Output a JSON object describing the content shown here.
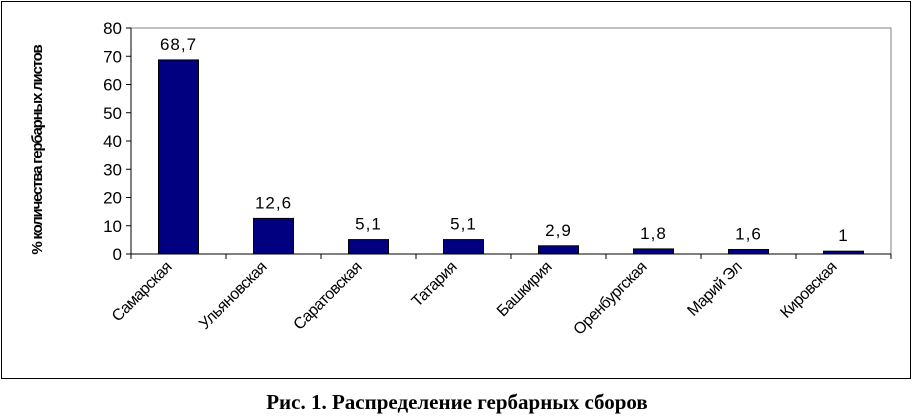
{
  "chart_data": {
    "type": "bar",
    "title": "",
    "xlabel": "",
    "ylabel": "% количества гербарных листов",
    "categories": [
      "Самарская",
      "Ульяновская",
      "Саратовская",
      "Татария",
      "Башкирия",
      "Оренбургская",
      "Марий Эл",
      "Кировская"
    ],
    "values": [
      68.7,
      12.6,
      5.1,
      5.1,
      2.9,
      1.8,
      1.6,
      1
    ],
    "data_labels": [
      "68,7",
      "12,6",
      "5,1",
      "5,1",
      "2,9",
      "1,8",
      "1,6",
      "1"
    ],
    "yticks": [
      0,
      10,
      20,
      30,
      40,
      50,
      60,
      70,
      80
    ],
    "ylim": [
      0,
      80
    ],
    "grid": false,
    "legend": "none",
    "colors": {
      "bar_fill": "#000080",
      "bar_stroke": "#000000",
      "plot_border": "#808080"
    }
  },
  "caption": "Рис. 1. Распределение гербарных сборов"
}
